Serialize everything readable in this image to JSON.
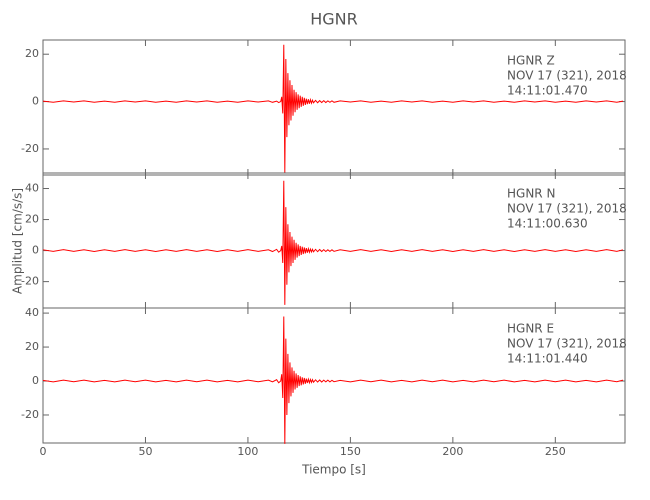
{
  "chart_data": {
    "type": "line",
    "title": "HGNR",
    "xlabel": "Tiempo [s]",
    "ylabel": "Amplitud [cm/s/s]",
    "xlim": [
      0,
      284
    ],
    "xticks": [
      0,
      50,
      100,
      150,
      200,
      250
    ],
    "x": [
      0,
      5,
      10,
      15,
      20,
      25,
      30,
      35,
      40,
      45,
      50,
      55,
      60,
      65,
      70,
      75,
      80,
      85,
      90,
      95,
      100,
      105,
      110,
      112,
      114,
      115,
      116,
      116.5,
      117,
      117.5,
      118,
      118.5,
      119,
      119.5,
      120,
      120.5,
      121,
      121.5,
      122,
      122.5,
      123,
      123.5,
      124,
      124.5,
      125,
      125.5,
      126,
      126.5,
      127,
      127.5,
      128,
      128.5,
      129,
      129.5,
      130,
      130.5,
      131,
      131.5,
      132,
      133,
      134,
      135,
      136,
      137,
      138,
      139,
      140,
      141,
      142,
      145,
      150,
      155,
      160,
      165,
      170,
      175,
      180,
      185,
      190,
      195,
      200,
      205,
      210,
      215,
      220,
      225,
      230,
      235,
      240,
      245,
      250,
      255,
      260,
      265,
      270,
      275,
      280,
      283
    ],
    "panels": [
      {
        "color": "#ff0000",
        "ylim": [
          -31,
          26
        ],
        "yticks": [
          -20,
          0,
          20
        ],
        "annotations": [
          "HGNR   Z",
          "NOV 17 (321), 2018",
          "14:11:01.470"
        ],
        "values": [
          0.2,
          -0.3,
          0.3,
          -0.2,
          0.3,
          -0.3,
          0.2,
          -0.3,
          0.3,
          -0.2,
          0.3,
          -0.3,
          0.2,
          -0.3,
          0.3,
          -0.2,
          0.3,
          -0.3,
          0.2,
          -0.3,
          0.3,
          -0.2,
          0.3,
          -0.3,
          0.2,
          -0.4,
          0,
          2,
          -5,
          24,
          -30,
          18,
          -15,
          12,
          -10,
          9,
          -8,
          7,
          -6,
          5,
          -4.5,
          4,
          -3.5,
          3,
          -2.8,
          2.5,
          -2.2,
          2,
          -1.8,
          1.6,
          -1.4,
          1.2,
          -1.1,
          1,
          -0.9,
          0.8,
          -0.7,
          0.6,
          -0.5,
          0.5,
          -0.5,
          0.4,
          -0.4,
          0.4,
          -0.4,
          0.3,
          -0.3,
          0.3,
          -0.3,
          0.3,
          -0.2,
          0.3,
          -0.3,
          0.2,
          -0.3,
          0.3,
          -0.2,
          0.3,
          -0.3,
          0.2,
          -0.3,
          0.3,
          -0.2,
          0.3,
          -0.3,
          0.2,
          -0.3,
          0.3,
          -0.2,
          0.3,
          -0.3,
          0.2,
          -0.3,
          0.3,
          -0.2,
          0.3,
          -0.3,
          0.2
        ]
      },
      {
        "color": "#ff0000",
        "ylim": [
          -37,
          50
        ],
        "yticks": [
          -20,
          0,
          20,
          40
        ],
        "annotations": [
          "HGNR   N",
          "NOV 17 (321), 2018",
          "14:11:00.630"
        ],
        "values": [
          0.5,
          -0.5,
          0.6,
          -0.5,
          0.5,
          -0.6,
          0.5,
          -0.5,
          0.6,
          -0.5,
          0.5,
          -0.6,
          0.5,
          -0.5,
          0.6,
          -0.5,
          0.5,
          -0.6,
          0.5,
          -0.5,
          0.6,
          -0.5,
          0.5,
          -0.6,
          0.8,
          -1,
          0,
          3,
          -8,
          45,
          -35,
          28,
          -22,
          17,
          -14,
          12,
          -10,
          9,
          -8,
          7,
          -6,
          5,
          -4.5,
          4,
          -3.5,
          3,
          -2.8,
          2.5,
          -2.2,
          2,
          -1.8,
          1.6,
          -1.4,
          1.2,
          -1.1,
          1,
          -0.9,
          0.8,
          -0.8,
          0.8,
          -0.7,
          0.7,
          -0.6,
          0.6,
          -0.6,
          0.5,
          -0.5,
          0.5,
          -0.5,
          0.5,
          -0.5,
          0.6,
          -0.5,
          0.5,
          -0.6,
          0.5,
          -0.5,
          0.6,
          -0.5,
          0.5,
          -0.6,
          0.5,
          -0.5,
          0.6,
          -0.5,
          0.5,
          -0.6,
          0.5,
          -0.5,
          0.6,
          -0.5,
          0.5,
          -0.6,
          0.5,
          -0.5,
          0.6,
          -0.5,
          0.5
        ]
      },
      {
        "color": "#ff0000",
        "ylim": [
          -36.5,
          43
        ],
        "yticks": [
          -20,
          0,
          20,
          40
        ],
        "annotations": [
          "HGNR   E",
          "NOV 17 (321), 2018",
          "14:11:01.440"
        ],
        "values": [
          0.4,
          -0.5,
          0.5,
          -0.4,
          0.5,
          -0.5,
          0.4,
          -0.5,
          0.5,
          -0.4,
          0.5,
          -0.5,
          0.4,
          -0.5,
          0.5,
          -0.4,
          0.5,
          -0.5,
          0.4,
          -0.5,
          0.5,
          -0.4,
          0.5,
          -0.5,
          0.8,
          -1,
          0,
          4,
          -10,
          38,
          -37,
          25,
          -20,
          16,
          -13,
          11,
          -9,
          8,
          -7,
          6,
          -5,
          4.5,
          -4,
          3.5,
          -3,
          2.8,
          -2.5,
          2.2,
          -2,
          1.8,
          -1.6,
          1.4,
          -1.2,
          1.1,
          -1,
          0.9,
          -0.8,
          0.8,
          -0.7,
          0.7,
          -0.6,
          0.6,
          -0.6,
          0.5,
          -0.5,
          0.5,
          -0.5,
          0.4,
          -0.4,
          0.4,
          -0.5,
          0.5,
          -0.4,
          0.5,
          -0.5,
          0.4,
          -0.5,
          0.5,
          -0.4,
          0.5,
          -0.5,
          0.4,
          -0.5,
          0.5,
          -0.4,
          0.5,
          -0.5,
          0.4,
          -0.5,
          0.5,
          -0.4,
          0.5,
          -0.5,
          0.4,
          -0.5,
          0.5,
          -0.4,
          0.5
        ]
      }
    ]
  }
}
